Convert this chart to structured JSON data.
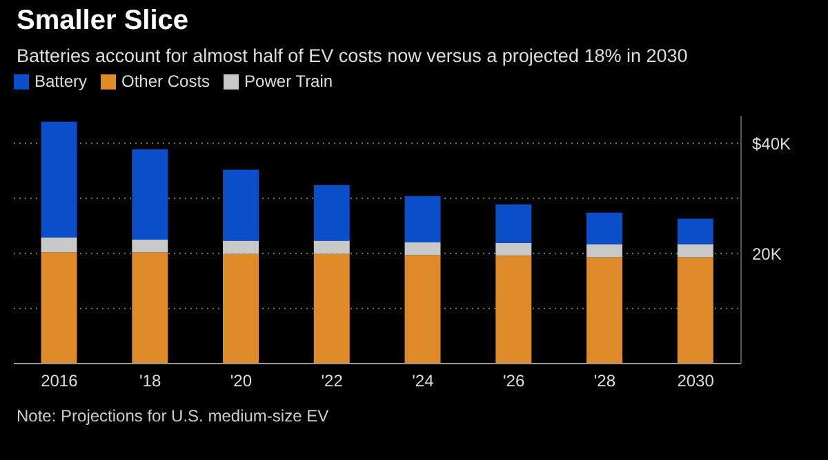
{
  "chart_data": {
    "type": "bar",
    "title": "Smaller Slice",
    "subtitle": "Batteries account for almost half of EV costs now versus a projected 18% in 2030",
    "categories": [
      "2016",
      "'18",
      "'20",
      "'22",
      "'24",
      "'26",
      "'28",
      "2030"
    ],
    "series": [
      {
        "name": "Other Costs",
        "color": "#e08b2a",
        "values": [
          20200,
          20200,
          19900,
          19900,
          19700,
          19600,
          19300,
          19300
        ]
      },
      {
        "name": "Power Train",
        "color": "#c8c8c8",
        "values": [
          2700,
          2300,
          2400,
          2400,
          2300,
          2300,
          2400,
          2400
        ]
      },
      {
        "name": "Battery",
        "color": "#0a4fc8",
        "values": [
          21000,
          16400,
          12900,
          10100,
          8400,
          7000,
          5700,
          4600
        ]
      }
    ],
    "stacked": true,
    "ylim": [
      0,
      45000
    ],
    "yticks": [
      {
        "value": 0,
        "label": null
      },
      {
        "value": 10000,
        "label": null
      },
      {
        "value": 20000,
        "label": "20K"
      },
      {
        "value": 30000,
        "label": null
      },
      {
        "value": 40000,
        "label": "$40K"
      }
    ],
    "grid": "y",
    "legend": "top left",
    "annotations": [
      "Note: Projections for U.S. medium-size EV"
    ]
  }
}
